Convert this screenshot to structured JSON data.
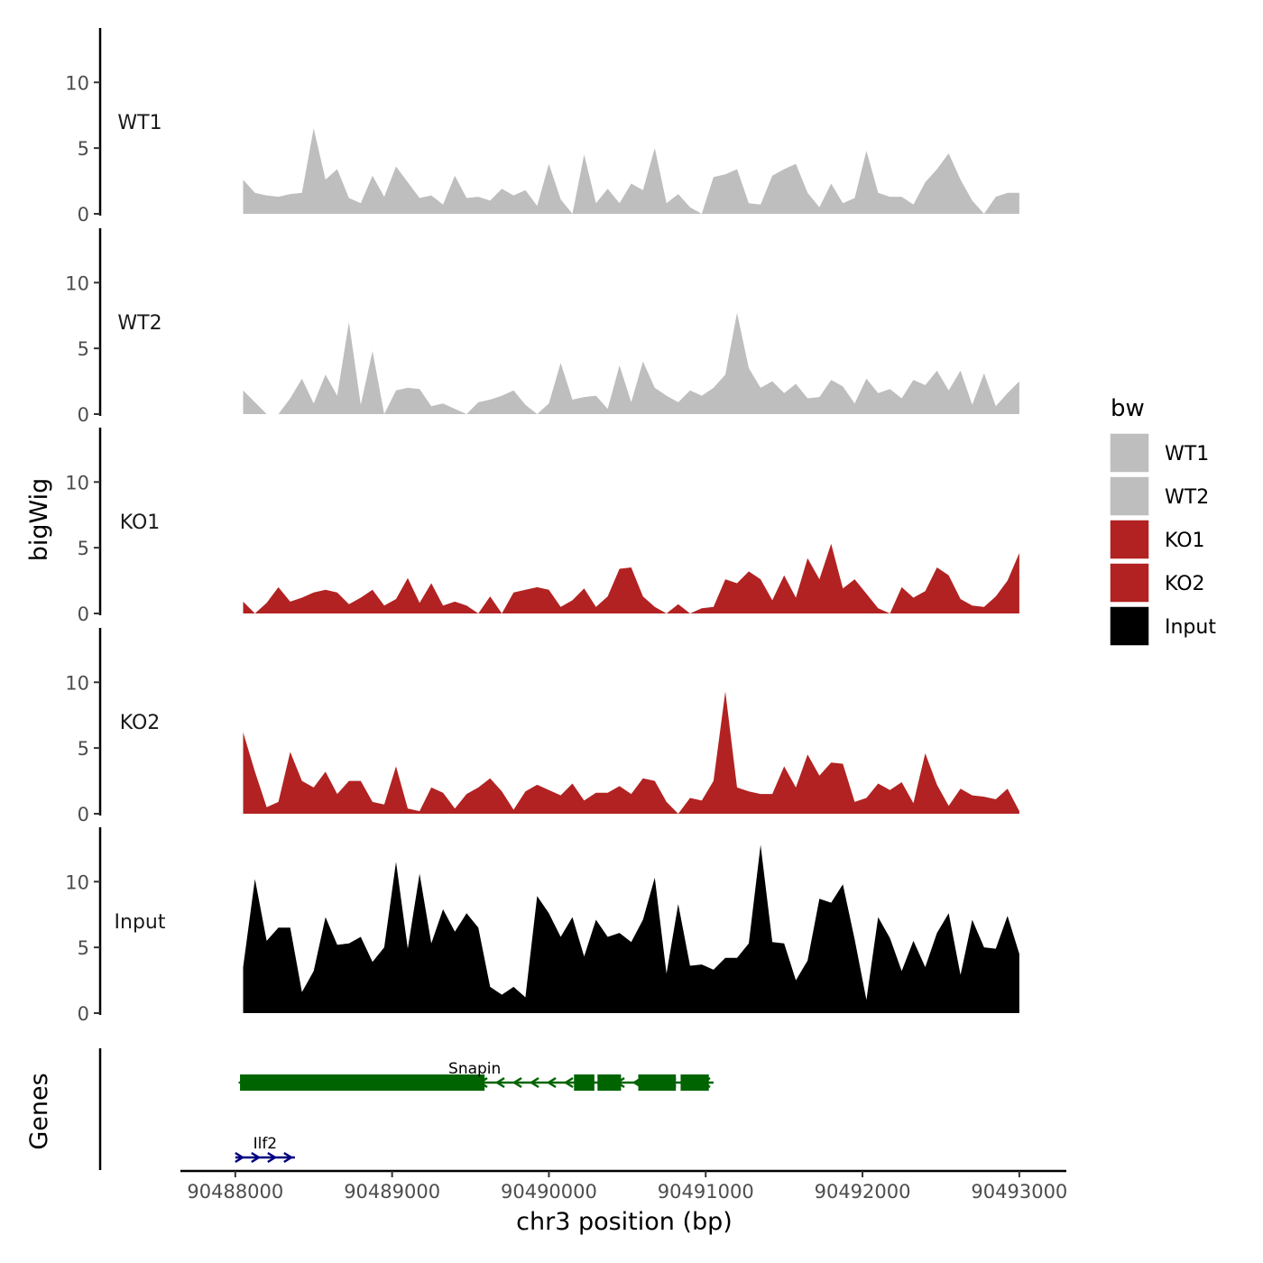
{
  "chart_data": {
    "type": "area",
    "x_axis": {
      "label": "chr3 position (bp)",
      "range": [
        90487650,
        90493300
      ],
      "ticks": [
        90488000,
        90489000,
        90490000,
        90491000,
        90492000,
        90493000
      ],
      "tick_labels": [
        "90488000",
        "90489000",
        "90490000",
        "90491000",
        "90492000",
        "90493000"
      ]
    },
    "y_axis": {
      "label": "bigWig",
      "range": [
        0,
        14
      ],
      "ticks": [
        0,
        5,
        10
      ],
      "tick_labels": [
        "0",
        "5",
        "10"
      ]
    },
    "genes_axis_label": "Genes",
    "legend": {
      "title": "bw",
      "position": "right",
      "entries": [
        {
          "label": "WT1",
          "color": "#BEBEBE"
        },
        {
          "label": "WT2",
          "color": "#BEBEBE"
        },
        {
          "label": "KO1",
          "color": "#B22222"
        },
        {
          "label": "KO2",
          "color": "#B22222"
        },
        {
          "label": "Input",
          "color": "#000000"
        }
      ]
    },
    "x": [
      90488050,
      90488125,
      90488200,
      90488275,
      90488350,
      90488425,
      90488500,
      90488575,
      90488650,
      90488725,
      90488800,
      90488875,
      90488950,
      90489025,
      90489100,
      90489175,
      90489250,
      90489325,
      90489400,
      90489475,
      90489550,
      90489625,
      90489700,
      90489775,
      90489850,
      90489925,
      90490000,
      90490075,
      90490150,
      90490225,
      90490300,
      90490375,
      90490450,
      90490525,
      90490600,
      90490675,
      90490750,
      90490825,
      90490900,
      90490975,
      90491050,
      90491125,
      90491200,
      90491275,
      90491350,
      90491425,
      90491500,
      90491575,
      90491650,
      90491725,
      90491800,
      90491875,
      90491950,
      90492025,
      90492100,
      90492175,
      90492250,
      90492325,
      90492400,
      90492475,
      90492550,
      90492625,
      90492700,
      90492775,
      90492850,
      90492925,
      90493000
    ],
    "series": [
      {
        "name": "WT1",
        "color": "#BEBEBE",
        "values": [
          2.6,
          1.6,
          1.4,
          1.3,
          1.5,
          1.6,
          6.5,
          2.6,
          3.4,
          1.2,
          0.8,
          2.9,
          1.3,
          3.6,
          2.4,
          1.2,
          1.4,
          0.7,
          2.9,
          1.2,
          1.3,
          1.0,
          1.9,
          1.4,
          1.8,
          0.6,
          3.8,
          1.1,
          0.0,
          4.5,
          0.8,
          1.9,
          0.8,
          2.3,
          1.8,
          5.0,
          0.8,
          1.5,
          0.5,
          0.0,
          2.8,
          3.0,
          3.4,
          0.8,
          0.7,
          2.9,
          3.4,
          3.8,
          1.6,
          0.5,
          2.3,
          0.8,
          1.2,
          4.8,
          1.6,
          1.3,
          1.3,
          0.7,
          2.4,
          3.4,
          4.6,
          2.6,
          1.0,
          0.0,
          1.3,
          1.6,
          1.6
        ]
      },
      {
        "name": "WT2",
        "color": "#BEBEBE",
        "values": [
          1.8,
          0.9,
          0.0,
          0.0,
          1.2,
          2.7,
          0.8,
          3.0,
          1.4,
          7.0,
          0.7,
          4.8,
          0.0,
          1.8,
          2.0,
          1.9,
          0.6,
          0.8,
          0.4,
          0.0,
          0.9,
          1.1,
          1.4,
          1.8,
          0.7,
          0.0,
          0.8,
          3.9,
          1.1,
          1.3,
          1.4,
          0.4,
          3.7,
          0.9,
          4.0,
          2.0,
          1.4,
          0.9,
          1.8,
          1.4,
          2.0,
          3.0,
          7.7,
          3.5,
          2.0,
          2.5,
          1.6,
          2.3,
          1.2,
          1.3,
          2.6,
          2.1,
          0.8,
          2.7,
          1.6,
          1.9,
          1.2,
          2.6,
          2.2,
          3.3,
          1.8,
          3.3,
          0.7,
          3.1,
          0.6,
          1.6,
          2.5
        ]
      },
      {
        "name": "KO1",
        "color": "#B22222",
        "values": [
          0.9,
          0.0,
          0.8,
          2.0,
          0.9,
          1.2,
          1.6,
          1.8,
          1.6,
          0.7,
          1.2,
          1.8,
          0.6,
          1.1,
          2.7,
          0.8,
          2.3,
          0.6,
          0.9,
          0.6,
          0.0,
          1.3,
          0.0,
          1.6,
          1.8,
          2.0,
          1.8,
          0.5,
          1.0,
          1.9,
          0.5,
          1.3,
          3.4,
          3.5,
          1.3,
          0.5,
          0.0,
          0.7,
          0.0,
          0.4,
          0.5,
          2.6,
          2.3,
          3.2,
          2.6,
          1.0,
          2.9,
          1.2,
          4.2,
          2.6,
          5.3,
          1.9,
          2.6,
          1.5,
          0.4,
          0.0,
          2.0,
          1.2,
          1.7,
          3.5,
          2.9,
          1.1,
          0.6,
          0.5,
          1.3,
          2.5,
          4.6
        ]
      },
      {
        "name": "KO2",
        "color": "#B22222",
        "values": [
          6.2,
          3.2,
          0.5,
          0.9,
          4.7,
          2.5,
          2.0,
          3.2,
          1.5,
          2.5,
          2.5,
          0.9,
          0.7,
          3.6,
          0.4,
          0.2,
          2.0,
          1.6,
          0.4,
          1.5,
          2.0,
          2.7,
          1.7,
          0.3,
          1.7,
          2.2,
          1.8,
          1.4,
          2.3,
          1.0,
          1.6,
          1.6,
          2.1,
          1.5,
          2.7,
          2.5,
          0.9,
          0.0,
          1.2,
          1.0,
          2.5,
          9.3,
          2.0,
          1.7,
          1.5,
          1.5,
          3.6,
          2.0,
          4.5,
          2.9,
          3.9,
          3.8,
          0.9,
          1.2,
          2.3,
          1.8,
          2.4,
          0.8,
          4.6,
          2.2,
          0.6,
          1.9,
          1.4,
          1.3,
          1.1,
          1.9,
          0.2
        ]
      },
      {
        "name": "Input",
        "color": "#000000",
        "values": [
          3.5,
          10.2,
          5.5,
          6.5,
          6.5,
          1.6,
          3.2,
          7.3,
          5.2,
          5.3,
          5.8,
          3.9,
          5.0,
          11.5,
          4.9,
          10.6,
          5.3,
          7.9,
          6.2,
          7.6,
          6.5,
          2.0,
          1.4,
          2.0,
          1.2,
          8.9,
          7.6,
          5.8,
          7.3,
          4.3,
          7.1,
          5.8,
          6.1,
          5.4,
          7.1,
          10.3,
          3.0,
          8.3,
          3.6,
          3.7,
          3.3,
          4.2,
          4.2,
          5.3,
          12.8,
          5.4,
          5.3,
          2.5,
          4.0,
          8.7,
          8.4,
          9.8,
          5.6,
          1.0,
          7.3,
          5.7,
          3.2,
          5.5,
          3.5,
          6.1,
          7.6,
          2.9,
          7.1,
          5.0,
          4.9,
          7.4,
          4.5
        ]
      }
    ],
    "genes": [
      {
        "name": "Snapin",
        "color": "#006400",
        "strand": "-",
        "start": 90488030,
        "end": 90491050,
        "exons": [
          [
            90488030,
            90489590
          ],
          [
            90490160,
            90490290
          ],
          [
            90490310,
            90490460
          ],
          [
            90490570,
            90490810
          ],
          [
            90490840,
            90491020
          ]
        ]
      },
      {
        "name": "Ilf2",
        "color": "#000080",
        "strand": "+",
        "start": 90488000,
        "end": 90488380,
        "exons": []
      }
    ]
  }
}
